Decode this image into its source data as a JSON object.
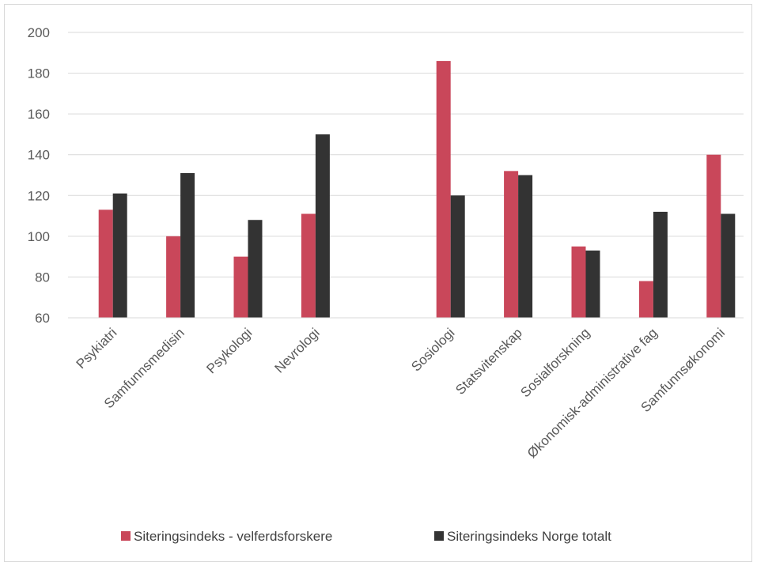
{
  "chart_data": {
    "type": "bar",
    "title": "",
    "xlabel": "",
    "ylabel": "",
    "ylim": [
      60,
      200
    ],
    "yticks": [
      60,
      80,
      100,
      120,
      140,
      160,
      180,
      200
    ],
    "grid": true,
    "legend_position": "bottom",
    "categories": [
      "Psykiatri",
      "Samfunnsmedisin",
      "Psykologi",
      "Nevrologi",
      "",
      "Sosiologi",
      "Statsvitenskap",
      "Sosialforskning",
      "Økonomisk-administrative fag",
      "Samfunnsøkonomi"
    ],
    "series": [
      {
        "name": "Siteringsindeks - velferdsforskere",
        "color": "#c9475a",
        "values": [
          113,
          100,
          90,
          111,
          null,
          186,
          132,
          95,
          78,
          140
        ]
      },
      {
        "name": "Siteringsindeks Norge totalt",
        "color": "#333333",
        "values": [
          121,
          131,
          108,
          150,
          null,
          120,
          130,
          93,
          112,
          111
        ]
      }
    ]
  }
}
